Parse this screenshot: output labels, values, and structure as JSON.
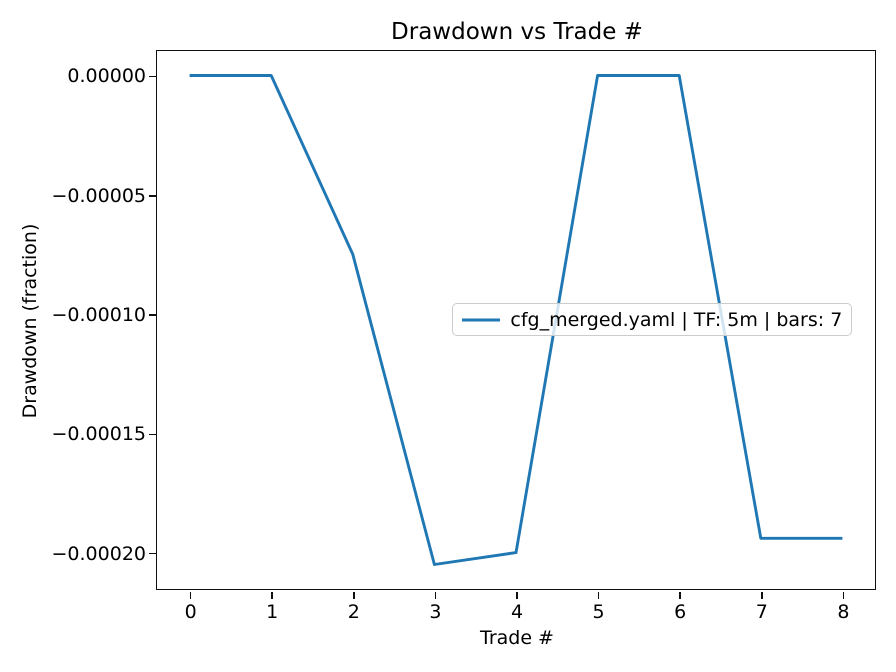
{
  "figure": {
    "title": "Drawdown vs Trade #",
    "xlabel": "Trade #",
    "ylabel": "Drawdown (fraction)",
    "background_color": "#ffffff",
    "spine_color": "#0f0f0f"
  },
  "legend": {
    "label": "cfg_merged.yaml | TF: 5m | bars: 7",
    "line_color": "#1f77b4",
    "border_color": "#cccccc"
  },
  "chart_data": {
    "type": "line",
    "title": "Drawdown vs Trade #",
    "xlabel": "Trade #",
    "ylabel": "Drawdown (fraction)",
    "series": [
      {
        "name": "cfg_merged.yaml | TF: 5m | bars: 7",
        "color": "#1f77b4",
        "x": [
          0,
          1,
          2,
          3,
          4,
          5,
          6,
          7,
          8
        ],
        "y": [
          0.0,
          0.0,
          -7.5e-05,
          -0.000205,
          -0.0002,
          0.0,
          0.0,
          -0.000194,
          -0.000194
        ]
      }
    ],
    "xticks": [
      0,
      1,
      2,
      3,
      4,
      5,
      6,
      7,
      8
    ],
    "xtick_labels": [
      "0",
      "1",
      "2",
      "3",
      "4",
      "5",
      "6",
      "7",
      "8"
    ],
    "yticks": [
      0.0,
      -5e-05,
      -0.0001,
      -0.00015,
      -0.0002
    ],
    "ytick_labels": [
      "0.00000",
      "−0.00005",
      "−0.00010",
      "−0.00015",
      "−0.00020"
    ],
    "xlim": [
      -0.4,
      8.4
    ],
    "ylim": [
      -0.00021525,
      1.025e-05
    ],
    "grid": false,
    "legend_position": "center right"
  }
}
